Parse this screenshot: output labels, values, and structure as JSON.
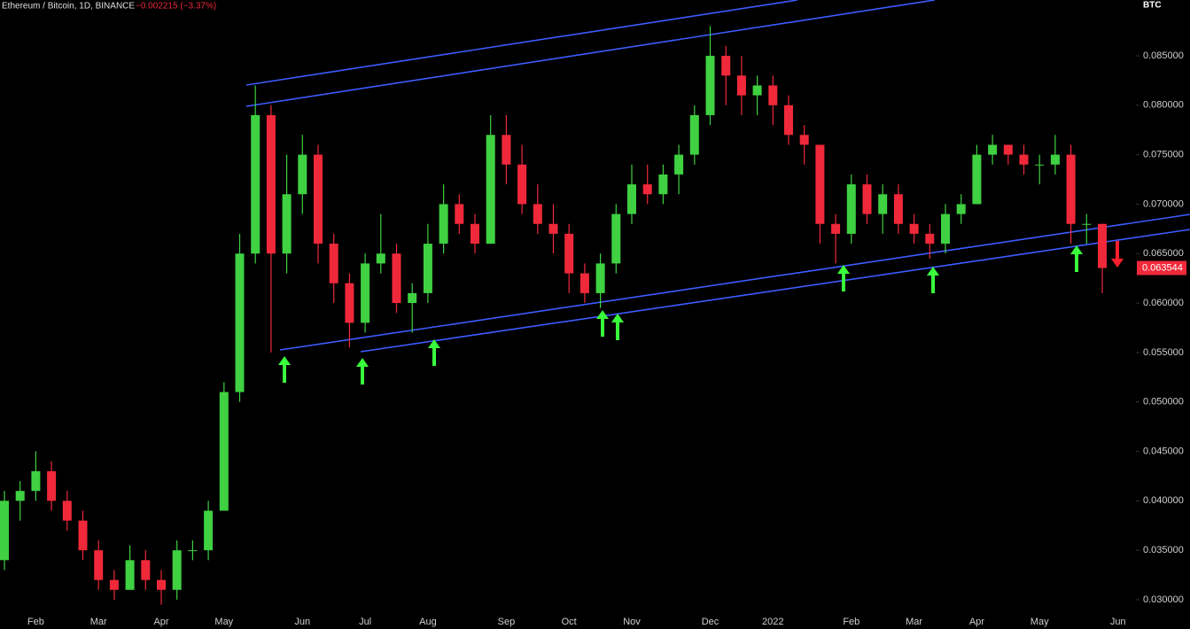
{
  "chart_data": {
    "type": "candlestick",
    "title": "Ethereum / Bitcoin, 1D, BINANCE",
    "change_label": "−0.002215 (−3.37%)",
    "y_axis_label": "BTC",
    "categories": [
      null,
      null,
      "Feb",
      null,
      null,
      null,
      "Mar",
      null,
      null,
      null,
      "Apr",
      null,
      null,
      null,
      "May",
      null,
      null,
      null,
      null,
      "Jun",
      null,
      null,
      null,
      "Jul",
      null,
      null,
      null,
      "Aug",
      null,
      null,
      null,
      null,
      "Sep",
      null,
      null,
      null,
      "Oct",
      null,
      null,
      null,
      "Nov",
      null,
      null,
      null,
      null,
      "Dec",
      null,
      null,
      null,
      "2022",
      null,
      null,
      null,
      null,
      "Feb",
      null,
      null,
      null,
      "Mar",
      null,
      null,
      null,
      "Apr",
      null,
      null,
      null,
      "May",
      null,
      null,
      null,
      null,
      "Jun"
    ],
    "open": [
      0.034,
      0.04,
      0.041,
      0.043,
      0.04,
      0.038,
      0.035,
      0.032,
      0.031,
      0.034,
      0.032,
      0.031,
      0.035,
      0.035,
      0.039,
      0.051,
      0.065,
      0.079,
      0.065,
      0.071,
      0.075,
      0.066,
      0.062,
      0.058,
      0.064,
      0.065,
      0.06,
      0.061,
      0.066,
      0.07,
      0.068,
      0.066,
      0.077,
      0.074,
      0.07,
      0.068,
      0.067,
      0.063,
      0.061,
      0.064,
      0.069,
      0.072,
      0.071,
      0.073,
      0.075,
      0.079,
      0.085,
      0.083,
      0.081,
      0.082,
      0.08,
      0.077,
      0.076,
      0.068,
      0.067,
      0.072,
      0.069,
      0.071,
      0.068,
      0.067,
      0.066,
      0.069,
      0.07,
      0.075,
      0.076,
      0.075,
      0.074,
      0.074,
      0.075,
      0.068,
      0.068,
      null
    ],
    "high": [
      0.041,
      0.042,
      0.045,
      0.044,
      0.041,
      0.039,
      0.036,
      0.033,
      0.0355,
      0.035,
      0.033,
      0.036,
      0.036,
      0.04,
      0.052,
      0.067,
      0.082,
      0.08,
      0.075,
      0.077,
      0.076,
      0.067,
      0.063,
      0.065,
      0.069,
      0.066,
      0.062,
      0.068,
      0.072,
      0.071,
      0.069,
      0.079,
      0.079,
      0.076,
      0.072,
      0.07,
      0.068,
      0.064,
      0.065,
      0.07,
      0.074,
      0.074,
      0.074,
      0.076,
      0.08,
      0.088,
      0.086,
      0.085,
      0.083,
      0.083,
      0.081,
      0.078,
      0.076,
      0.069,
      0.073,
      0.073,
      0.072,
      0.072,
      0.069,
      0.068,
      0.07,
      0.071,
      0.076,
      0.077,
      0.076,
      0.076,
      0.075,
      0.077,
      0.076,
      0.069,
      0.068,
      null
    ],
    "low": [
      0.033,
      0.038,
      0.04,
      0.039,
      0.037,
      0.034,
      0.031,
      0.03,
      0.031,
      0.031,
      0.0295,
      0.03,
      0.034,
      0.034,
      0.039,
      0.05,
      0.064,
      0.055,
      0.063,
      0.069,
      0.064,
      0.06,
      0.0555,
      0.057,
      0.063,
      0.059,
      0.057,
      0.06,
      0.065,
      0.067,
      0.065,
      0.066,
      0.072,
      0.069,
      0.067,
      0.065,
      0.061,
      0.06,
      0.0595,
      0.063,
      0.068,
      0.07,
      0.07,
      0.071,
      0.074,
      0.078,
      0.08,
      0.079,
      0.079,
      0.078,
      0.076,
      0.074,
      0.066,
      0.064,
      0.066,
      0.068,
      0.067,
      0.067,
      0.066,
      0.0645,
      0.065,
      0.068,
      0.07,
      0.074,
      0.074,
      0.073,
      0.072,
      0.073,
      0.066,
      0.066,
      0.061,
      null
    ],
    "close": [
      0.04,
      0.041,
      0.043,
      0.04,
      0.038,
      0.035,
      0.032,
      0.031,
      0.034,
      0.032,
      0.031,
      0.035,
      0.035,
      0.039,
      0.051,
      0.065,
      0.079,
      0.065,
      0.071,
      0.075,
      0.066,
      0.062,
      0.058,
      0.064,
      0.065,
      0.06,
      0.061,
      0.066,
      0.07,
      0.068,
      0.066,
      0.077,
      0.074,
      0.07,
      0.068,
      0.067,
      0.063,
      0.061,
      0.064,
      0.069,
      0.072,
      0.071,
      0.073,
      0.075,
      0.079,
      0.085,
      0.083,
      0.081,
      0.082,
      0.08,
      0.077,
      0.076,
      0.068,
      0.067,
      0.072,
      0.069,
      0.071,
      0.068,
      0.067,
      0.066,
      0.069,
      0.07,
      0.075,
      0.076,
      0.075,
      0.074,
      0.074,
      0.075,
      0.068,
      0.068,
      0.063544,
      null
    ],
    "last_value_label": "0.063544",
    "up_color": "#3fd141",
    "down_color": "#f0293a",
    "ylim": [
      0.02704,
      0.09064
    ],
    "yticks": [
      {
        "value": 0.03,
        "label": "0.030000"
      },
      {
        "value": 0.035,
        "label": "0.035000"
      },
      {
        "value": 0.04,
        "label": "0.040000"
      },
      {
        "value": 0.045,
        "label": "0.045000"
      },
      {
        "value": 0.05,
        "label": "0.050000"
      },
      {
        "value": 0.055,
        "label": "0.055000"
      },
      {
        "value": 0.06,
        "label": "0.060000"
      },
      {
        "value": 0.065,
        "label": "0.065000"
      },
      {
        "value": 0.07,
        "label": "0.070000"
      },
      {
        "value": 0.075,
        "label": "0.075000"
      },
      {
        "value": 0.08,
        "label": "0.080000"
      },
      {
        "value": 0.085,
        "label": "0.085000"
      }
    ]
  }
}
